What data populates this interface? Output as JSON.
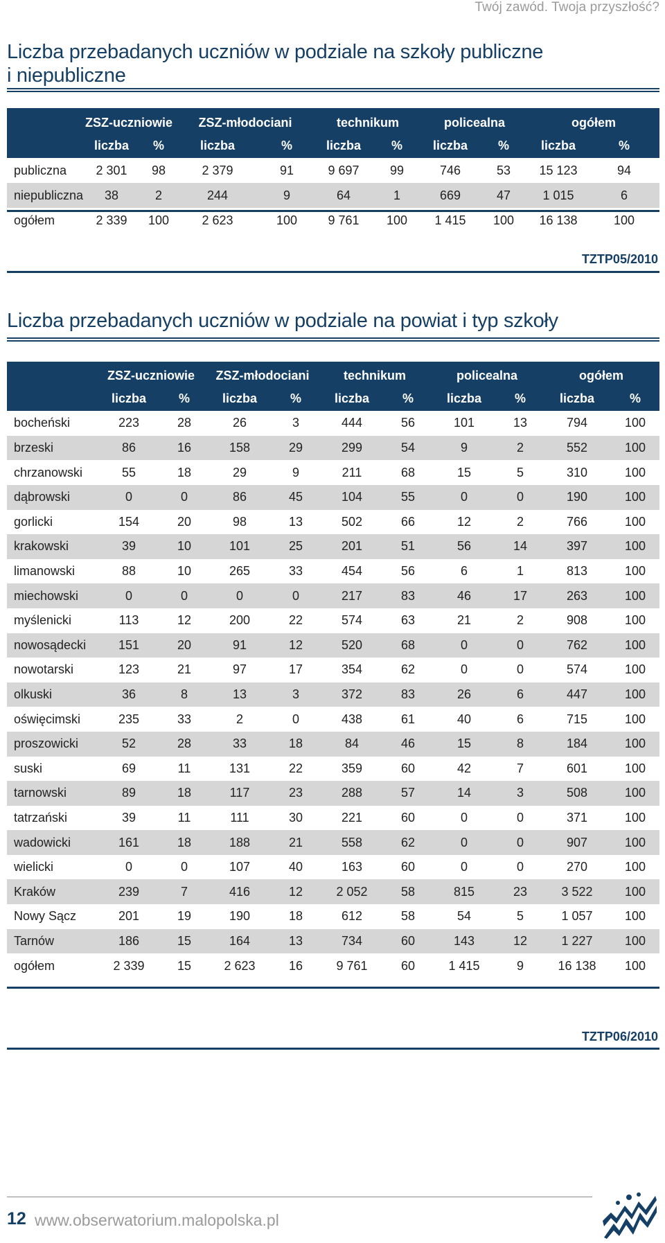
{
  "header": {
    "tagline": "Twój zawód. Twoja przyszłość?"
  },
  "section1": {
    "title_line1": "Liczba przebadanych uczniów w podziale na szkoły publiczne",
    "title_line2": "i niepubliczne",
    "groups": [
      "ZSZ-uczniowie",
      "ZSZ-młodociani",
      "technikum",
      "policealna",
      "ogółem"
    ],
    "subheaders": [
      "liczba",
      "%",
      "liczba",
      "%",
      "liczba",
      "%",
      "liczba",
      "%",
      "liczba",
      "%"
    ],
    "rows": [
      {
        "label": "publiczna",
        "values": [
          "2 301",
          "98",
          "2 379",
          "91",
          "9 697",
          "99",
          "746",
          "53",
          "15 123",
          "94"
        ]
      },
      {
        "label": "niepubliczna",
        "values": [
          "38",
          "2",
          "244",
          "9",
          "64",
          "1",
          "669",
          "47",
          "1 015",
          "6"
        ]
      },
      {
        "label": "ogółem",
        "values": [
          "2 339",
          "100",
          "2 623",
          "100",
          "9 761",
          "100",
          "1 415",
          "100",
          "16 138",
          "100"
        ]
      }
    ],
    "code": "TZTP05/2010"
  },
  "section2": {
    "title": "Liczba przebadanych uczniów w podziale na powiat i typ szkoły",
    "groups": [
      "ZSZ-uczniowie",
      "ZSZ-młodociani",
      "technikum",
      "policealna",
      "ogółem"
    ],
    "subheaders": [
      "liczba",
      "%",
      "liczba",
      "%",
      "liczba",
      "%",
      "liczba",
      "%",
      "liczba",
      "%"
    ],
    "rows": [
      {
        "label": "bocheński",
        "values": [
          "223",
          "28",
          "26",
          "3",
          "444",
          "56",
          "101",
          "13",
          "794",
          "100"
        ]
      },
      {
        "label": "brzeski",
        "values": [
          "86",
          "16",
          "158",
          "29",
          "299",
          "54",
          "9",
          "2",
          "552",
          "100"
        ]
      },
      {
        "label": "chrzanowski",
        "values": [
          "55",
          "18",
          "29",
          "9",
          "211",
          "68",
          "15",
          "5",
          "310",
          "100"
        ]
      },
      {
        "label": "dąbrowski",
        "values": [
          "0",
          "0",
          "86",
          "45",
          "104",
          "55",
          "0",
          "0",
          "190",
          "100"
        ]
      },
      {
        "label": "gorlicki",
        "values": [
          "154",
          "20",
          "98",
          "13",
          "502",
          "66",
          "12",
          "2",
          "766",
          "100"
        ]
      },
      {
        "label": "krakowski",
        "values": [
          "39",
          "10",
          "101",
          "25",
          "201",
          "51",
          "56",
          "14",
          "397",
          "100"
        ]
      },
      {
        "label": "limanowski",
        "values": [
          "88",
          "10",
          "265",
          "33",
          "454",
          "56",
          "6",
          "1",
          "813",
          "100"
        ]
      },
      {
        "label": "miechowski",
        "values": [
          "0",
          "0",
          "0",
          "0",
          "217",
          "83",
          "46",
          "17",
          "263",
          "100"
        ]
      },
      {
        "label": "myślenicki",
        "values": [
          "113",
          "12",
          "200",
          "22",
          "574",
          "63",
          "21",
          "2",
          "908",
          "100"
        ]
      },
      {
        "label": "nowosądecki",
        "values": [
          "151",
          "20",
          "91",
          "12",
          "520",
          "68",
          "0",
          "0",
          "762",
          "100"
        ]
      },
      {
        "label": "nowotarski",
        "values": [
          "123",
          "21",
          "97",
          "17",
          "354",
          "62",
          "0",
          "0",
          "574",
          "100"
        ]
      },
      {
        "label": "olkuski",
        "values": [
          "36",
          "8",
          "13",
          "3",
          "372",
          "83",
          "26",
          "6",
          "447",
          "100"
        ]
      },
      {
        "label": "oświęcimski",
        "values": [
          "235",
          "33",
          "2",
          "0",
          "438",
          "61",
          "40",
          "6",
          "715",
          "100"
        ]
      },
      {
        "label": "proszowicki",
        "values": [
          "52",
          "28",
          "33",
          "18",
          "84",
          "46",
          "15",
          "8",
          "184",
          "100"
        ]
      },
      {
        "label": "suski",
        "values": [
          "69",
          "11",
          "131",
          "22",
          "359",
          "60",
          "42",
          "7",
          "601",
          "100"
        ]
      },
      {
        "label": "tarnowski",
        "values": [
          "89",
          "18",
          "117",
          "23",
          "288",
          "57",
          "14",
          "3",
          "508",
          "100"
        ]
      },
      {
        "label": "tatrzański",
        "values": [
          "39",
          "11",
          "111",
          "30",
          "221",
          "60",
          "0",
          "0",
          "371",
          "100"
        ]
      },
      {
        "label": "wadowicki",
        "values": [
          "161",
          "18",
          "188",
          "21",
          "558",
          "62",
          "0",
          "0",
          "907",
          "100"
        ]
      },
      {
        "label": "wielicki",
        "values": [
          "0",
          "0",
          "107",
          "40",
          "163",
          "60",
          "0",
          "0",
          "270",
          "100"
        ]
      },
      {
        "label": "Kraków",
        "values": [
          "239",
          "7",
          "416",
          "12",
          "2 052",
          "58",
          "815",
          "23",
          "3 522",
          "100"
        ]
      },
      {
        "label": "Nowy Sącz",
        "values": [
          "201",
          "19",
          "190",
          "18",
          "612",
          "58",
          "54",
          "5",
          "1 057",
          "100"
        ]
      },
      {
        "label": "Tarnów",
        "values": [
          "186",
          "15",
          "164",
          "13",
          "734",
          "60",
          "143",
          "12",
          "1 227",
          "100"
        ]
      },
      {
        "label": "ogółem",
        "values": [
          "2 339",
          "15",
          "2 623",
          "16",
          "9 761",
          "60",
          "1 415",
          "9",
          "16 138",
          "100"
        ]
      }
    ],
    "code": "TZTP06/2010"
  },
  "footer": {
    "page_number": "12",
    "url": "www.obserwatorium.malopolska.pl",
    "logo_icon": "malopolska-logo-icon"
  },
  "colors": {
    "accent": "#163f66",
    "alt_row": "#d6d6d7",
    "muted_text": "#9a9a9a"
  }
}
